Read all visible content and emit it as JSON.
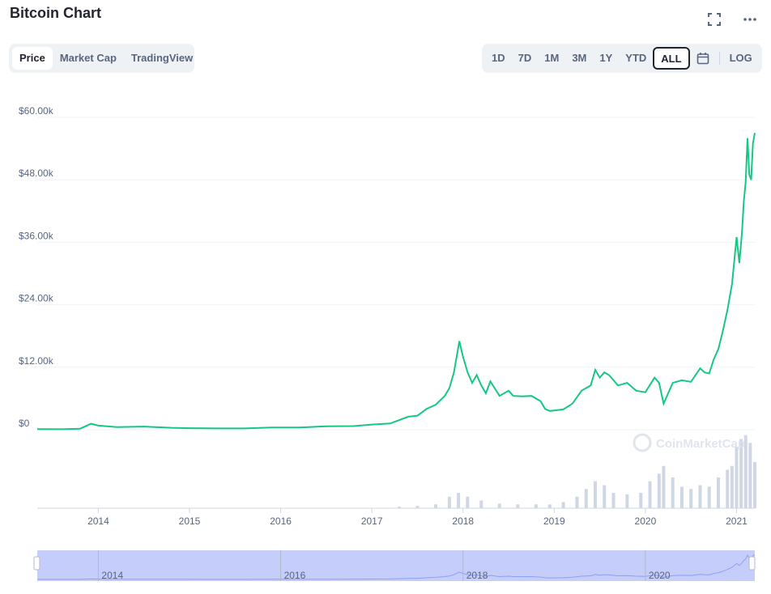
{
  "header": {
    "title": "Bitcoin Chart",
    "fullscreen_icon": "fullscreen-icon",
    "more_icon": "more-icon"
  },
  "tabs": [
    {
      "label": "Price",
      "active": true
    },
    {
      "label": "Market Cap",
      "active": false
    },
    {
      "label": "TradingView",
      "active": false
    }
  ],
  "ranges": [
    {
      "label": "1D",
      "active": false
    },
    {
      "label": "7D",
      "active": false
    },
    {
      "label": "1M",
      "active": false
    },
    {
      "label": "3M",
      "active": false
    },
    {
      "label": "1Y",
      "active": false
    },
    {
      "label": "YTD",
      "active": false
    },
    {
      "label": "ALL",
      "active": true
    }
  ],
  "calendar_icon": "calendar-icon",
  "log_label": "LOG",
  "watermark": "CoinMarketCap",
  "colors": {
    "line": "#16c784",
    "volume": "#cfd6e4",
    "navigator_fill": "#c5cdfa",
    "grid": "#eff2f5",
    "axis_text": "#58667e"
  },
  "chart_data": {
    "type": "line",
    "y_ticks": [
      "$60.00k",
      "$48.00k",
      "$36.00k",
      "$24.00k",
      "$12.00k",
      "$0"
    ],
    "x_ticks": [
      "2014",
      "2015",
      "2016",
      "2017",
      "2018",
      "2019",
      "2020",
      "2021"
    ],
    "navigator_ticks": [
      "2014",
      "2016",
      "2018",
      "2020"
    ],
    "ylim": [
      0,
      60000
    ],
    "xlim": [
      2013.33,
      2021.2
    ],
    "grid": true,
    "series": [
      {
        "x": [
          2013.33,
          2013.6,
          2013.8,
          2013.92,
          2014.0,
          2014.1,
          2014.2,
          2014.5,
          2014.8,
          2015.0,
          2015.3,
          2015.6,
          2015.9,
          2016.2,
          2016.5,
          2016.8,
          2017.0,
          2017.2,
          2017.4,
          2017.5,
          2017.6,
          2017.7,
          2017.8,
          2017.85,
          2017.9,
          2017.96,
          2018.0,
          2018.05,
          2018.1,
          2018.15,
          2018.2,
          2018.25,
          2018.3,
          2018.4,
          2018.5,
          2018.55,
          2018.65,
          2018.75,
          2018.85,
          2018.9,
          2018.95,
          2019.0,
          2019.1,
          2019.2,
          2019.3,
          2019.4,
          2019.45,
          2019.5,
          2019.55,
          2019.6,
          2019.7,
          2019.8,
          2019.9,
          2020.0,
          2020.1,
          2020.15,
          2020.2,
          2020.25,
          2020.3,
          2020.4,
          2020.5,
          2020.6,
          2020.65,
          2020.7,
          2020.75,
          2020.8,
          2020.85,
          2020.9,
          2020.95,
          2021.0,
          2021.03,
          2021.06,
          2021.08,
          2021.1,
          2021.12,
          2021.14,
          2021.16,
          2021.18,
          2021.2
        ],
        "y": [
          120,
          100,
          200,
          1150,
          800,
          650,
          500,
          600,
          380,
          300,
          250,
          250,
          430,
          420,
          650,
          700,
          1000,
          1200,
          2500,
          2700,
          4000,
          4800,
          6500,
          8000,
          11000,
          17000,
          14000,
          11000,
          9000,
          10500,
          8500,
          7000,
          9300,
          6500,
          7500,
          6500,
          6400,
          6500,
          5500,
          4000,
          3600,
          3700,
          3900,
          5000,
          7500,
          8500,
          11500,
          10000,
          11000,
          10500,
          8500,
          9000,
          7500,
          7200,
          10000,
          9000,
          5000,
          7000,
          9000,
          9500,
          9200,
          11800,
          11000,
          10800,
          13500,
          15500,
          19000,
          23000,
          28000,
          37000,
          32000,
          38000,
          44000,
          47500,
          56000,
          49000,
          48000,
          55000,
          57000
        ]
      }
    ],
    "volume": {
      "x": [
        2017.3,
        2017.5,
        2017.7,
        2017.85,
        2017.95,
        2018.05,
        2018.2,
        2018.4,
        2018.6,
        2018.8,
        2018.95,
        2019.1,
        2019.25,
        2019.35,
        2019.45,
        2019.55,
        2019.65,
        2019.8,
        2019.95,
        2020.05,
        2020.15,
        2020.2,
        2020.3,
        2020.4,
        2020.5,
        2020.6,
        2020.7,
        2020.8,
        2020.9,
        2020.95,
        2021.0,
        2021.05,
        2021.1,
        2021.15,
        2021.2
      ],
      "values": [
        0.02,
        0.03,
        0.05,
        0.15,
        0.2,
        0.15,
        0.1,
        0.06,
        0.05,
        0.05,
        0.05,
        0.08,
        0.15,
        0.25,
        0.35,
        0.3,
        0.2,
        0.18,
        0.2,
        0.35,
        0.45,
        0.55,
        0.4,
        0.28,
        0.25,
        0.3,
        0.28,
        0.4,
        0.5,
        0.55,
        0.8,
        0.9,
        0.95,
        0.85,
        0.6
      ]
    }
  }
}
